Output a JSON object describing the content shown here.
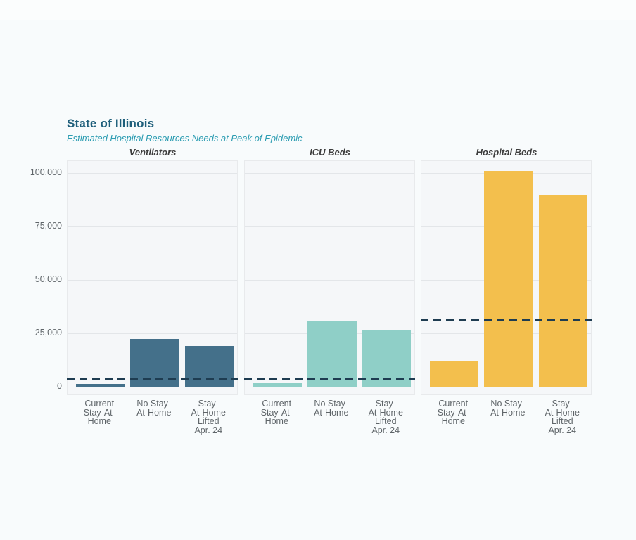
{
  "header": {
    "title": "State of Illinois",
    "subtitle": "Estimated Hospital Resources Needs at Peak of Epidemic"
  },
  "colors": {
    "title_text": "#1f5f7b",
    "subtitle_text": "#2d9db2",
    "panel_title_text": "#3c3c3c",
    "axis_text": "#5f6569",
    "page_background": "#f8fbfc",
    "panel_background": "#f5f7f9",
    "panel_border": "#e8eaec",
    "gridline": "#e3e6e9",
    "capacity_line": "#1e3c51",
    "ventilators_bar": "#44708a",
    "icu_beds_bar": "#8fcfc7",
    "hospital_beds_bar": "#f3bf4d"
  },
  "y_axis": {
    "tick_labels": [
      "0",
      "25,000",
      "50,000",
      "75,000",
      "100,000"
    ],
    "tick_values": [
      0,
      25000,
      50000,
      75000,
      100000
    ],
    "ylim": [
      0,
      105600
    ],
    "grid": true
  },
  "chart_data": [
    {
      "type": "bar",
      "title": "Ventilators",
      "categories": [
        "Current\nStay-At-\nHome",
        "No Stay-\nAt-Home",
        "Stay-\nAt-Home\nLifted\nApr. 24"
      ],
      "values": [
        1300,
        22400,
        19000
      ],
      "capacity_dashed_line": 3300,
      "bar_color": "#44708a"
    },
    {
      "type": "bar",
      "title": "ICU Beds",
      "categories": [
        "Current\nStay-At-\nHome",
        "No Stay-\nAt-Home",
        "Stay-\nAt-Home\nLifted\nApr. 24"
      ],
      "values": [
        1800,
        30800,
        26200
      ],
      "capacity_dashed_line": 3300,
      "bar_color": "#8fcfc7"
    },
    {
      "type": "bar",
      "title": "Hospital Beds",
      "categories": [
        "Current\nStay-At-\nHome",
        "No Stay-\nAt-Home",
        "Stay-\nAt-Home\nLifted\nApr. 24"
      ],
      "values": [
        11800,
        101000,
        89500
      ],
      "capacity_dashed_line": 31500,
      "bar_color": "#f3bf4d"
    }
  ]
}
